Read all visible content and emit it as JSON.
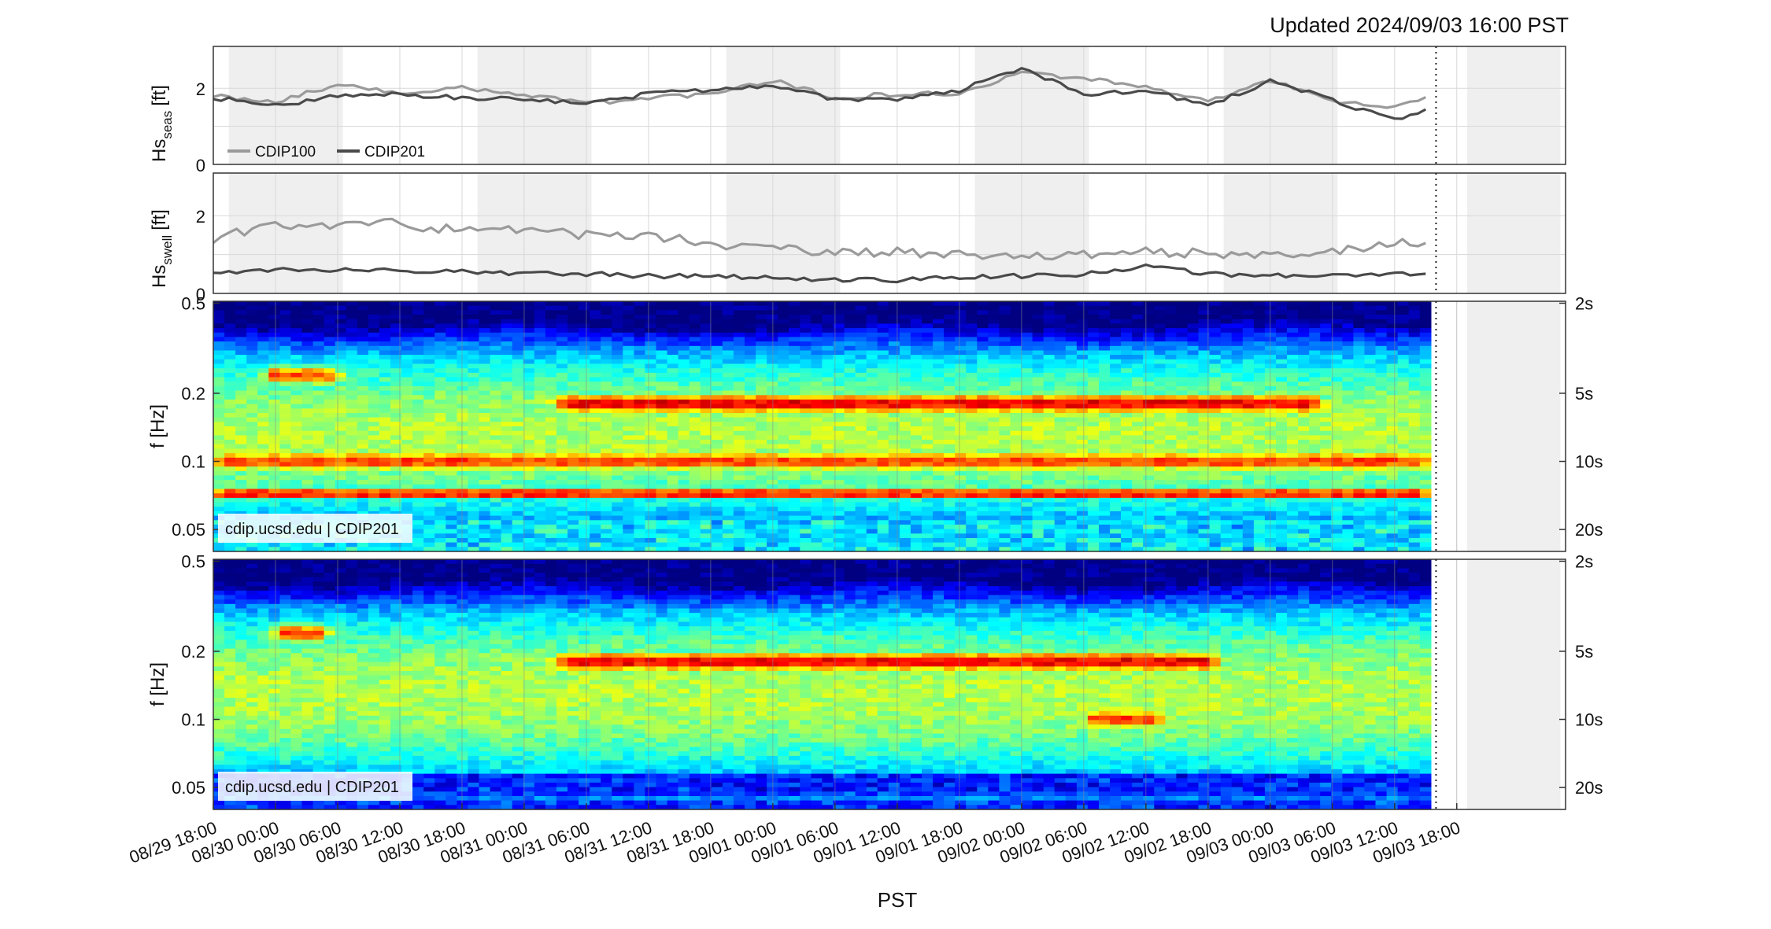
{
  "updated": "Updated 2024/09/03 16:00 PST",
  "watermark": "cdip.ucsd.edu | CDIP201",
  "xlabel": "PST",
  "colors": {
    "cdip100": "#9a9a9a",
    "cdip201": "#4a4a4a",
    "night_shade": "#efefef"
  },
  "x_ticks": [
    "08/29 18:00",
    "08/30 00:00",
    "08/30 06:00",
    "08/30 12:00",
    "08/30 18:00",
    "08/31 00:00",
    "08/31 06:00",
    "08/31 12:00",
    "08/31 18:00",
    "09/01 00:00",
    "09/01 06:00",
    "09/01 12:00",
    "09/01 18:00",
    "09/02 00:00",
    "09/02 06:00",
    "09/02 12:00",
    "09/02 18:00",
    "09/03 00:00",
    "09/03 06:00",
    "09/03 12:00",
    "09/03 18:00"
  ],
  "now_marker_hours": 118,
  "night_bands_hours": [
    [
      1.5,
      12.5
    ],
    [
      25.5,
      36.5
    ],
    [
      49.5,
      60.5
    ],
    [
      73.5,
      84.5
    ],
    [
      97.5,
      108.5
    ],
    [
      121,
      130
    ]
  ],
  "seas": {
    "ylabel_main": "Hs",
    "ylabel_sub": "seas",
    "ylabel_unit": "[ft]",
    "yticks": [
      "0",
      "2"
    ],
    "ylim": [
      0,
      3.1
    ]
  },
  "swell": {
    "ylabel_main": "Hs",
    "ylabel_sub": "swell",
    "ylabel_unit": "[ft]",
    "yticks": [
      "0",
      "2"
    ],
    "ylim": [
      0,
      3.1
    ]
  },
  "spectra": {
    "ylabel": "f [Hz]",
    "freq_ticks": [
      "0.5",
      "0.2",
      "0.1",
      "0.05"
    ],
    "period_ticks": [
      "2s",
      "5s",
      "10s",
      "20s"
    ]
  },
  "chart_data": [
    {
      "type": "line",
      "panel": "seas",
      "x_units": "hours since 08/29 18:00 PST",
      "x": [
        0,
        6,
        12,
        18,
        24,
        30,
        36,
        42,
        48,
        54,
        60,
        66,
        72,
        78,
        84,
        90,
        96,
        102,
        108,
        114,
        117.5
      ],
      "series": [
        {
          "name": "CDIP100",
          "values": [
            1.8,
            1.65,
            2.1,
            1.85,
            2.0,
            1.85,
            1.6,
            1.75,
            1.85,
            2.2,
            1.75,
            1.85,
            1.85,
            2.4,
            2.25,
            2.05,
            1.65,
            2.2,
            1.65,
            1.5,
            1.75
          ]
        },
        {
          "name": "CDIP201",
          "values": [
            1.75,
            1.55,
            1.8,
            1.85,
            1.75,
            1.7,
            1.6,
            1.85,
            1.95,
            2.1,
            1.7,
            1.7,
            1.95,
            2.5,
            1.85,
            1.95,
            1.55,
            2.2,
            1.7,
            1.15,
            1.45
          ]
        }
      ]
    },
    {
      "type": "line",
      "panel": "swell",
      "x_units": "hours since 08/29 18:00 PST",
      "x": [
        0,
        6,
        12,
        18,
        24,
        30,
        36,
        42,
        48,
        54,
        60,
        66,
        72,
        78,
        84,
        90,
        96,
        102,
        108,
        114,
        117.5
      ],
      "series": [
        {
          "name": "CDIP100",
          "values": [
            1.4,
            1.8,
            1.75,
            1.8,
            1.6,
            1.6,
            1.5,
            1.5,
            1.3,
            1.15,
            1.1,
            1.05,
            1.0,
            0.95,
            1.0,
            1.05,
            1.05,
            1.0,
            1.1,
            1.3,
            1.35
          ]
        },
        {
          "name": "CDIP201",
          "values": [
            0.55,
            0.6,
            0.6,
            0.6,
            0.55,
            0.5,
            0.5,
            0.45,
            0.45,
            0.4,
            0.35,
            0.35,
            0.4,
            0.45,
            0.5,
            0.7,
            0.5,
            0.45,
            0.45,
            0.5,
            0.5
          ]
        }
      ]
    },
    {
      "type": "heatmap",
      "panel": "spectrum-upper",
      "x_units": "hours since 08/29 18:00 PST",
      "y_units": "Hz",
      "ylim": [
        0.04,
        0.51
      ],
      "y_scale": "log",
      "x_range": [
        0,
        117.5
      ],
      "peaks": [
        {
          "x_range": [
            0,
            117.5
          ],
          "f": 0.072,
          "level": "high"
        },
        {
          "x_range": [
            5,
            12
          ],
          "f": 0.24,
          "level": "medium"
        },
        {
          "x_range": [
            33,
            107
          ],
          "f": 0.18,
          "level": "high"
        },
        {
          "x_range": [
            0,
            117.5
          ],
          "f": 0.1,
          "level": "medium"
        }
      ]
    },
    {
      "type": "heatmap",
      "panel": "spectrum-lower",
      "x_units": "hours since 08/29 18:00 PST",
      "y_units": "Hz",
      "ylim": [
        0.04,
        0.51
      ],
      "y_scale": "log",
      "x_range": [
        0,
        117.5
      ],
      "peaks": [
        {
          "x_range": [
            6,
            11
          ],
          "f": 0.24,
          "level": "medium"
        },
        {
          "x_range": [
            33,
            97
          ],
          "f": 0.18,
          "level": "high"
        },
        {
          "x_range": [
            84,
            92
          ],
          "f": 0.1,
          "level": "medium"
        },
        {
          "x_range": [
            0,
            117.5
          ],
          "f": 0.045,
          "level": "low"
        }
      ]
    }
  ]
}
